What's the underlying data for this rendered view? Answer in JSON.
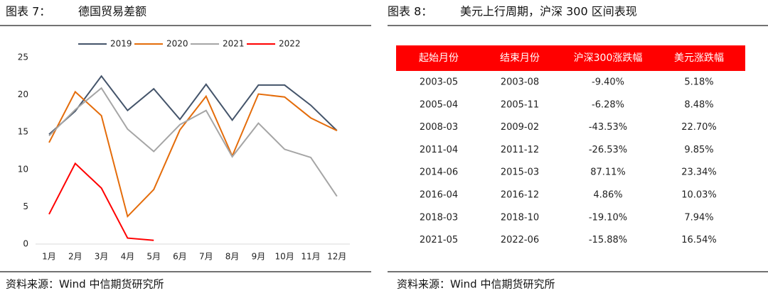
{
  "left": {
    "label": "图表 7：",
    "title": "德国贸易差额",
    "source": "资料来源：Wind   中信期货研究所"
  },
  "right": {
    "label": "图表 8：",
    "title": "美元上行周期，沪深 300 区间表现",
    "source": "资料来源：Wind   中信期货研究所"
  },
  "chart_data": {
    "type": "line",
    "categories": [
      "1月",
      "2月",
      "3月",
      "4月",
      "5月",
      "6月",
      "7月",
      "8月",
      "9月",
      "10月",
      "11月",
      "12月"
    ],
    "series": [
      {
        "name": "2019",
        "color": "#44546a",
        "values": [
          14.7,
          17.8,
          22.5,
          17.9,
          20.8,
          16.7,
          21.4,
          16.6,
          21.3,
          21.3,
          18.6,
          15.2
        ]
      },
      {
        "name": "2020",
        "color": "#e46c0a",
        "values": [
          13.6,
          20.4,
          17.2,
          3.7,
          7.3,
          15.3,
          19.8,
          11.8,
          20.1,
          19.7,
          16.9,
          15.2
        ]
      },
      {
        "name": "2021",
        "color": "#a5a5a5",
        "values": [
          14.5,
          18.0,
          20.9,
          15.4,
          12.4,
          16.0,
          17.9,
          11.7,
          16.2,
          12.7,
          11.6,
          6.4
        ]
      },
      {
        "name": "2022",
        "color": "#ff0000",
        "values": [
          4.0,
          10.8,
          7.5,
          0.8,
          0.5,
          null,
          null,
          null,
          null,
          null,
          null,
          null
        ]
      }
    ],
    "ylim": [
      0,
      25
    ],
    "yticks": [
      0,
      5,
      10,
      15,
      20,
      25
    ],
    "legend": "top"
  },
  "table": {
    "header": [
      "起始月份",
      "结束月份",
      "沪深300涨跌幅",
      "美元涨跌幅"
    ],
    "rows": [
      [
        "2003-05",
        "2003-08",
        "-9.40%",
        "5.18%"
      ],
      [
        "2005-04",
        "2005-11",
        "-6.28%",
        "8.48%"
      ],
      [
        "2008-03",
        "2009-02",
        "-43.53%",
        "22.70%"
      ],
      [
        "2011-04",
        "2011-12",
        "-26.53%",
        "9.85%"
      ],
      [
        "2014-06",
        "2015-03",
        "87.11%",
        "23.34%"
      ],
      [
        "2016-04",
        "2016-12",
        "4.86%",
        "10.03%"
      ],
      [
        "2018-03",
        "2018-10",
        "-19.10%",
        "7.94%"
      ],
      [
        "2021-05",
        "2022-06",
        "-15.88%",
        "16.54%"
      ]
    ],
    "header_color": "#ff0000"
  }
}
